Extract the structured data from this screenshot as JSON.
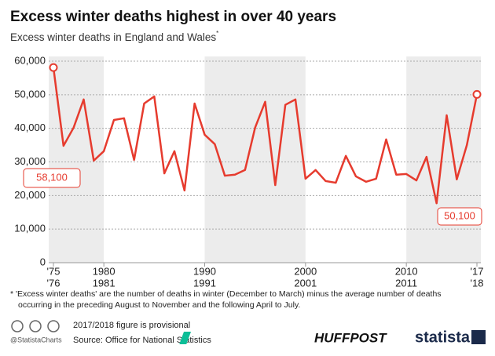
{
  "chart_data": {
    "type": "line",
    "title": "Excess winter deaths highest in over 40 years",
    "subtitle": "Excess winter deaths in England and Wales",
    "subtitle_mark": "*",
    "categories": [
      [
        "'75",
        "'76"
      ],
      null,
      null,
      null,
      null,
      [
        "1980",
        "1981"
      ],
      null,
      null,
      null,
      null,
      null,
      null,
      null,
      null,
      null,
      [
        "1990",
        "1991"
      ],
      null,
      null,
      null,
      null,
      null,
      null,
      null,
      null,
      null,
      [
        "2000",
        "2001"
      ],
      null,
      null,
      null,
      null,
      null,
      null,
      null,
      null,
      null,
      [
        "2010",
        "2011"
      ],
      null,
      null,
      null,
      null,
      null,
      null,
      [
        "'17",
        "'18"
      ]
    ],
    "series": [
      {
        "name": "Excess winter deaths",
        "color": "#e63b2e",
        "values": [
          58100,
          34800,
          40200,
          48600,
          30400,
          33200,
          42500,
          43000,
          30600,
          47400,
          49500,
          26600,
          33200,
          21500,
          47400,
          38100,
          35300,
          25900,
          26200,
          27600,
          40200,
          47900,
          23100,
          47000,
          48600,
          25000,
          27600,
          24300,
          23800,
          31800,
          25700,
          24100,
          25000,
          36700,
          26200,
          26400,
          24500,
          31500,
          17700,
          43900,
          24800,
          35000,
          50100
        ],
        "value_labels": [
          "58,100",
          null,
          null,
          null,
          null,
          null,
          null,
          null,
          null,
          null,
          null,
          null,
          null,
          null,
          null,
          null,
          null,
          null,
          null,
          null,
          null,
          null,
          null,
          null,
          null,
          null,
          null,
          null,
          null,
          null,
          null,
          null,
          null,
          null,
          null,
          null,
          null,
          null,
          null,
          null,
          null,
          null,
          "50,100"
        ]
      }
    ],
    "ylim": [
      0,
      60000
    ],
    "yticks": [
      0,
      {
        "value": 10000,
        "label": "10,000"
      },
      {
        "value": 20000,
        "label": "20,000"
      },
      {
        "value": 30000,
        "label": "30,000"
      },
      {
        "value": 40000,
        "label": "40,000"
      },
      {
        "value": 50000,
        "label": "50,000"
      },
      {
        "value": 60000,
        "label": "60,000"
      }
    ],
    "grid": true,
    "footnote": [
      "* 'Excess winter deaths' are the number of deaths in winter (December to March) minus the average number of deaths",
      "occurring in the preceding August to November and the following April to July."
    ],
    "note": "2017/2018 figure is provisional",
    "source": "Source: Office for National Statistics",
    "handle": "@StatistaCharts",
    "brand1": "HUFFPOST",
    "brand2": "statista"
  }
}
